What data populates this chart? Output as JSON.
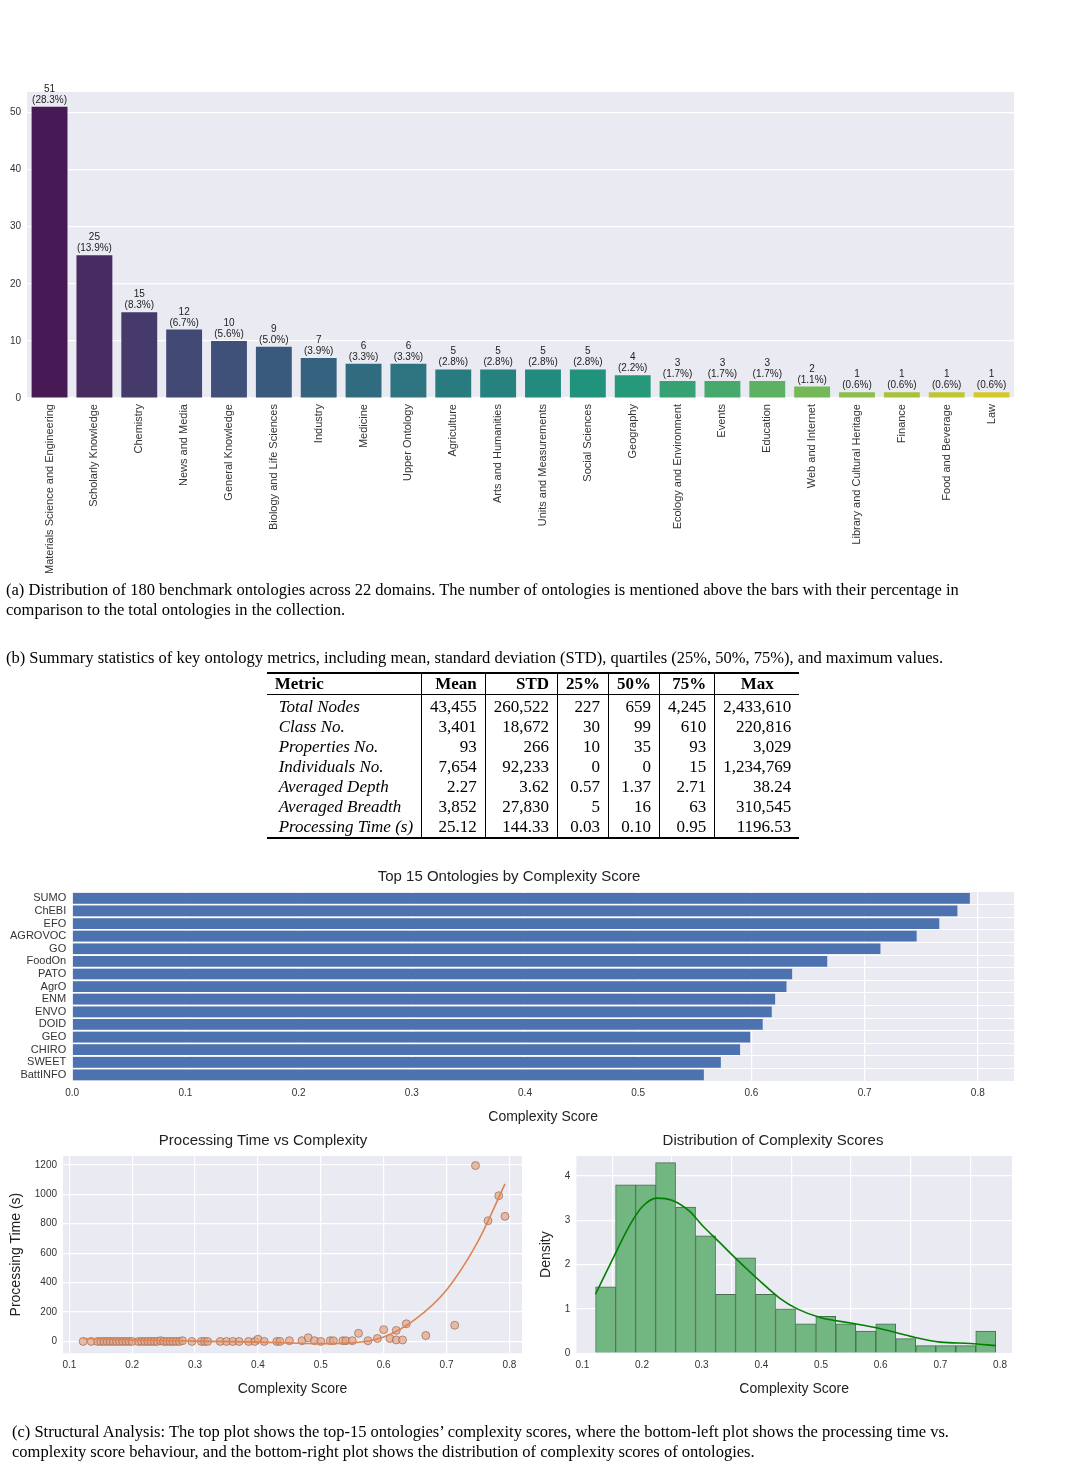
{
  "chart_data": [
    {
      "type": "bar",
      "categories": [
        "Materials Science and Engineering",
        "Scholarly Knowledge",
        "Chemistry",
        "News and Media",
        "General Knowledge",
        "Biology and Life Sciences",
        "Industry",
        "Medicine",
        "Upper Ontology",
        "Agriculture",
        "Arts and Humanities",
        "Units and Measurements",
        "Social Sciences",
        "Geography",
        "Ecology and Environment",
        "Events",
        "Education",
        "Web and Internet",
        "Library and Cultural Heritage",
        "Finance",
        "Food and Beverage",
        "Law"
      ],
      "values": [
        51,
        25,
        15,
        12,
        10,
        9,
        7,
        6,
        6,
        5,
        5,
        5,
        5,
        4,
        3,
        3,
        3,
        2,
        1,
        1,
        1,
        1
      ],
      "value_labels": [
        "51 (28.3%)",
        "25 (13.9%)",
        "15 (8.3%)",
        "12 (6.7%)",
        "10 (5.6%)",
        "9 (5.0%)",
        "7 (3.9%)",
        "6 (3.3%)",
        "6 (3.3%)",
        "5 (2.8%)",
        "5 (2.8%)",
        "5 (2.8%)",
        "5 (2.8%)",
        "4 (2.2%)",
        "3 (1.7%)",
        "3 (1.7%)",
        "3 (1.7%)",
        "2 (1.1%)",
        "1 (0.6%)",
        "1 (0.6%)",
        "1 (0.6%)",
        "1 (0.6%)"
      ],
      "colors": [
        "#471a55",
        "#482b61",
        "#463a6b",
        "#434975",
        "#3f5079",
        "#3a5a7d",
        "#35637f",
        "#316b80",
        "#2d7380",
        "#297b80",
        "#26827f",
        "#238a7e",
        "#21927b",
        "#26997a",
        "#36a273",
        "#47a96c",
        "#5cb163",
        "#74b857",
        "#8dbe49",
        "#a6c33c",
        "#bec632",
        "#d3c92b"
      ],
      "ylim": [
        0,
        53.6
      ],
      "yticks": [
        0,
        10,
        20,
        30,
        40,
        50
      ],
      "grid": "y",
      "annotations": [
        "(a) Distribution of 180 benchmark ontologies across 22 domains. The number of ontologies is mentioned above the bars with their percentage in comparison to the total ontologies in the collection."
      ]
    },
    {
      "type": "other",
      "title": "(b) Summary statistics of key ontology metrics, including mean, standard deviation (STD), quartiles (25%, 50%, 75%), and maximum values.",
      "ylabel": "Metric",
      "categories": [
        "Mean",
        "STD",
        "25%",
        "50%",
        "75%",
        "Max"
      ],
      "y_categories": [
        "Total Nodes",
        "Class No.",
        "Properties No.",
        "Individuals No.",
        "Averaged Depth",
        "Averaged Breadth",
        "Processing Time (s)"
      ],
      "cell_labels": [
        [
          "43,455",
          "260,522",
          "227",
          "659",
          "4,245",
          "2,433,610"
        ],
        [
          "3,401",
          "18,672",
          "30",
          "99",
          "610",
          "220,816"
        ],
        [
          "93",
          "266",
          "10",
          "35",
          "93",
          "3,029"
        ],
        [
          "7,654",
          "92,233",
          "0",
          "0",
          "15",
          "1,234,769"
        ],
        [
          "2.27",
          "3.62",
          "0.57",
          "1.37",
          "2.71",
          "38.24"
        ],
        [
          "3,852",
          "27,830",
          "5",
          "16",
          "63",
          "310,545"
        ],
        [
          "25.12",
          "144.33",
          "0.03",
          "0.10",
          "0.95",
          "1196.53"
        ]
      ]
    },
    {
      "type": "bar",
      "orientation": "horizontal",
      "title": "Top 15 Ontologies by Complexity Score",
      "xlabel": "Complexity Score",
      "categories": [
        "SUMO",
        "ChEBI",
        "EFO",
        "AGROVOC",
        "GO",
        "FoodOn",
        "PATO",
        "AgrO",
        "ENM",
        "ENVO",
        "DOID",
        "GEO",
        "CHIRO",
        "SWEET",
        "BattINFO"
      ],
      "values": [
        0.793,
        0.782,
        0.766,
        0.746,
        0.714,
        0.667,
        0.636,
        0.631,
        0.621,
        0.618,
        0.61,
        0.599,
        0.59,
        0.573,
        0.558
      ],
      "color": "#4c72b0",
      "xlim": [
        0,
        0.832
      ],
      "xticks": [
        {
          "value": 0,
          "label": "0.0"
        },
        0.1,
        0.2,
        0.3,
        0.4,
        0.5,
        0.6,
        0.7,
        0.8
      ],
      "grid": true
    },
    {
      "type": "scatter",
      "title": "Processing Time vs Complexity",
      "xlabel": "Complexity Score",
      "ylabel": "Processing Time (s)",
      "grid": true,
      "xlim": [
        0.09,
        0.82
      ],
      "xticks": [
        0.1,
        0.2,
        0.3,
        0.4,
        0.5,
        0.6,
        0.7,
        0.8
      ],
      "ylim": [
        -80,
        1260
      ],
      "yticks": [
        0,
        200,
        400,
        600,
        800,
        1000,
        1200
      ],
      "series": [
        {
          "type": "scatter",
          "marker": "circle",
          "color": "#e5a585",
          "x": [
            0.122,
            0.135,
            0.145,
            0.15,
            0.155,
            0.16,
            0.165,
            0.17,
            0.175,
            0.18,
            0.185,
            0.19,
            0.195,
            0.2,
            0.21,
            0.215,
            0.22,
            0.225,
            0.23,
            0.235,
            0.24,
            0.245,
            0.25,
            0.255,
            0.26,
            0.265,
            0.27,
            0.275,
            0.28,
            0.295,
            0.31,
            0.315,
            0.32,
            0.34,
            0.35,
            0.36,
            0.37,
            0.385,
            0.395,
            0.4,
            0.41,
            0.43,
            0.435,
            0.45,
            0.47,
            0.48,
            0.49,
            0.5,
            0.515,
            0.52,
            0.535,
            0.54,
            0.55,
            0.56,
            0.575,
            0.59,
            0.6,
            0.61,
            0.62,
            0.62,
            0.63,
            0.636,
            0.667,
            0.713,
            0.746,
            0.766,
            0.783,
            0.793
          ],
          "values": [
            0,
            0,
            0,
            0,
            0,
            0,
            0,
            0,
            0,
            0,
            0,
            0,
            0,
            0,
            0,
            0,
            0,
            0,
            0,
            0,
            0,
            5,
            0,
            0,
            0,
            0,
            0,
            0,
            5,
            0,
            0,
            0,
            0,
            0,
            0,
            0,
            0,
            0,
            0,
            15,
            0,
            0,
            0,
            5,
            5,
            25,
            5,
            0,
            5,
            5,
            5,
            5,
            5,
            55,
            5,
            20,
            80,
            20,
            75,
            10,
            10,
            120,
            40,
            110,
            1195,
            820,
            990,
            850
          ]
        },
        {
          "type": "line",
          "color": "#dd8452",
          "x": [
            0.122,
            0.2,
            0.3,
            0.4,
            0.45,
            0.5,
            0.55,
            0.6,
            0.65,
            0.7,
            0.75,
            0.793
          ],
          "values": [
            20,
            10,
            2,
            -5,
            -10,
            -15,
            -10,
            30,
            150,
            350,
            680,
            1070
          ]
        }
      ]
    },
    {
      "type": "histogram",
      "title": "Distribution of Complexity Scores",
      "xlabel": "Complexity Score",
      "ylabel": "Density",
      "grid": true,
      "bins": [
        0.122,
        0.156,
        0.189,
        0.223,
        0.256,
        0.29,
        0.323,
        0.357,
        0.39,
        0.424,
        0.457,
        0.491,
        0.525,
        0.558,
        0.592,
        0.625,
        0.659,
        0.692,
        0.726,
        0.759,
        0.793
      ],
      "xlim": [
        0.09,
        0.82
      ],
      "xticks": [
        0.1,
        0.2,
        0.3,
        0.4,
        0.5,
        0.6,
        0.7,
        0.8
      ],
      "ylim": [
        0,
        4.45
      ],
      "yticks": [
        0,
        1,
        2,
        3,
        4
      ],
      "series": [
        {
          "type": "histogram",
          "color": "#72b682",
          "values": [
            1.5,
            3.8,
            3.8,
            4.3,
            3.3,
            2.65,
            1.33,
            2.15,
            1.33,
            1.0,
            0.66,
            0.83,
            0.66,
            0.5,
            0.66,
            0.33,
            0.17,
            0.17,
            0.17,
            0.5
          ]
        },
        {
          "type": "line",
          "color": "#008000",
          "x": [
            0.122,
            0.15,
            0.18,
            0.2,
            0.225,
            0.25,
            0.28,
            0.3,
            0.33,
            0.36,
            0.4,
            0.43,
            0.46,
            0.5,
            0.55,
            0.6,
            0.65,
            0.7,
            0.75,
            0.793
          ],
          "values": [
            1.33,
            2.1,
            2.9,
            3.3,
            3.5,
            3.45,
            3.2,
            2.9,
            2.5,
            2.1,
            1.6,
            1.25,
            1.0,
            0.8,
            0.68,
            0.55,
            0.38,
            0.25,
            0.22,
            0.17
          ]
        }
      ],
      "annotations": [
        "(c) Structural Analysis: The top plot shows the top-15 ontologies’ complexity scores, where the bottom-left plot shows the processing time vs. complexity score behaviour, and the bottom-right plot shows the distribution of complexity scores of ontologies."
      ]
    }
  ]
}
